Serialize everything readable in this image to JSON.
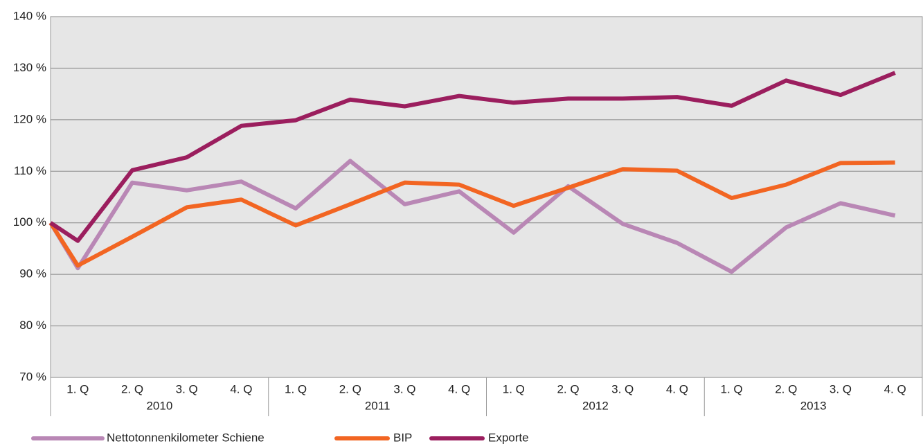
{
  "chart_data": {
    "type": "line",
    "categories": [
      null,
      "1. Q",
      "2. Q",
      "3. Q",
      "4. Q",
      "1. Q",
      "2. Q",
      "3. Q",
      "4. Q",
      "1. Q",
      "2. Q",
      "3. Q",
      "4. Q",
      "1. Q",
      "2. Q",
      "3. Q",
      "4. Q"
    ],
    "years": [
      "2010",
      "2011",
      "2012",
      "2013"
    ],
    "series": [
      {
        "name": "Nettotonnenkilometer Schiene",
        "color": "#b987b5",
        "values": [
          100,
          91.2,
          107.8,
          106.3,
          108,
          102.8,
          112,
          103.6,
          106.1,
          98.1,
          107.1,
          99.8,
          96.1,
          90.5,
          99.1,
          103.8,
          101.4
        ]
      },
      {
        "name": "BIP",
        "color": "#f26522",
        "values": [
          100,
          91.7,
          97.3,
          103,
          104.5,
          99.5,
          103.6,
          107.8,
          107.4,
          103.3,
          106.8,
          110.4,
          110.1,
          104.8,
          107.4,
          111.6,
          111.7
        ]
      },
      {
        "name": "Exporte",
        "color": "#9b1e5e",
        "values": [
          100,
          96.5,
          110.2,
          112.7,
          118.8,
          119.9,
          123.9,
          122.6,
          124.6,
          123.3,
          124.1,
          124.1,
          124.4,
          122.7,
          127.6,
          124.8,
          129.1
        ]
      }
    ],
    "ylim": [
      70,
      140
    ],
    "yticks": [
      {
        "value": 70,
        "label": "70 %"
      },
      {
        "value": 80,
        "label": "80 %"
      },
      {
        "value": 90,
        "label": "90 %"
      },
      {
        "value": 100,
        "label": "100 %"
      },
      {
        "value": 110,
        "label": "110 %"
      },
      {
        "value": 120,
        "label": "120 %"
      },
      {
        "value": 130,
        "label": "130 %"
      },
      {
        "value": 140,
        "label": "140 %"
      }
    ],
    "grid": true,
    "legend": "bottom"
  }
}
